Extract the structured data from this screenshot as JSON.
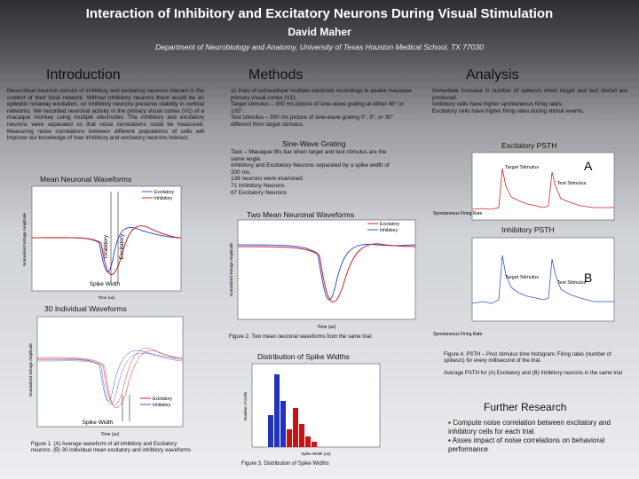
{
  "header": {
    "title": "Interaction of Inhibitory and Excitatory Neurons During Visual Stimulation",
    "author": "David Maher",
    "affiliation": "Department of Neurobiology and Anatomy, University of Texas Houston Medical School, TX 77030"
  },
  "introduction": {
    "heading": "Introduction",
    "text": "Neocortical neurons consist of inhibitory and excitatory neurons interact in the context of their local network. Without inhibitory neurons there would be an epileptic runaway excitation, so inhibitory neurons preserve stability in cortical networks. We recorded neuronal activity in the primary visual cortex (V1) of a macaque monkey using multiple electrodes. The inhibitory and excitatory neurons were separated so that noise correlations could be measured. Measuring noise correlations between different populations of cells will improve our knowledge of how inhibitory and excitatory neurons interact.",
    "figure_a": {
      "title": "Mean Neuronal Waveforms",
      "legend": [
        "Excitatory",
        "Inhibitory"
      ],
      "label_inhibitory": "Inhibitory",
      "label_excitatory": "Excitatory",
      "spike_width": "Spike Width",
      "ylabel": "Normalized Voltage Amplitude",
      "xlabel": "Time (us)"
    },
    "figure_b": {
      "title": "30 Individual Waveforms",
      "legend": [
        "Excitatory",
        "Inhibitory"
      ],
      "spike_width": "Spike Width",
      "ylabel": "Normalized Voltage Amplitude",
      "xlabel": "Time (us)"
    },
    "caption": "Figure 1. (A) Average waveform of all inhibitory and Excitatory neurons. (B) 30 individual mean excitatory and inhibitory waveforms"
  },
  "methods": {
    "heading": "Methods",
    "items": [
      "11 trials of extracellular multiple electrode recordings in awake macaque primary visual cortex (V1).",
      "Target stimulus – 300 ms picture of sine-wave grating at either 45° or 135°.",
      "Test stimulus – 300 ms picture of sine-wave grating 0°, 5°, or 30° different from target stimulus."
    ],
    "grating_title": "Sine-Wave Grating",
    "items2": [
      "Task – Macaque lifts bar when target and test stimulus are the same angle.",
      "Inhibitory and Excitatory Neurons separated by a spike width of 200 ms.",
      "138 neurons were examined.",
      "71 Inhibitory Neurons",
      "67 Excitatory Neurons"
    ],
    "figure2": {
      "title": "Two Mean Neuronal Waveforms",
      "legend": [
        "Excitatory",
        "Inhibitory"
      ],
      "ylabel": "Normalized Voltage Amplitude",
      "xlabel": "Time (us)",
      "caption": "Figure 2. Two mean neuronal waveforms from the same trial."
    },
    "figure3": {
      "title": "Distribution of Spike Widths",
      "ylabel": "Number of Cells",
      "xlabel": "Spike Width (us)",
      "caption": "Figure 3. Distribution of Spike Widths"
    }
  },
  "analysis": {
    "heading": "Analysis",
    "items": [
      "Immediate increase in number of spikes/s when target and test stimuli are produced.",
      "Inhibitory cells have higher spontaneous firing rates.",
      "Excitatory cells have higher firing rates during stimuli events."
    ],
    "psth_a": {
      "title": "Excitatory PSTH",
      "letter": "A",
      "target": "Target Stimulus",
      "test": "Test Stimulus",
      "spontaneous": "Spontaneous Firing Rate"
    },
    "psth_b": {
      "title": "Inhibitory PSTH",
      "letter": "B",
      "target": "Target Stimulus",
      "test": "Test Stimulus",
      "spontaneous": "Spontaneous Firing Rate"
    },
    "caption": "Figure 4. PSTH – Post stimulus time histogram: Firing rates (number of spikes/s) for every millisecond of the trial.",
    "caption2": "Average PSTH for (A) Excitatory and (B) Inhibitory neurons in the same trial"
  },
  "further": {
    "heading": "Further Research",
    "items": [
      "Compute noise correlation between excitatory and inhibitory cells for each trial.",
      "Asses impact of noise correlations on behavioral performance"
    ]
  }
}
